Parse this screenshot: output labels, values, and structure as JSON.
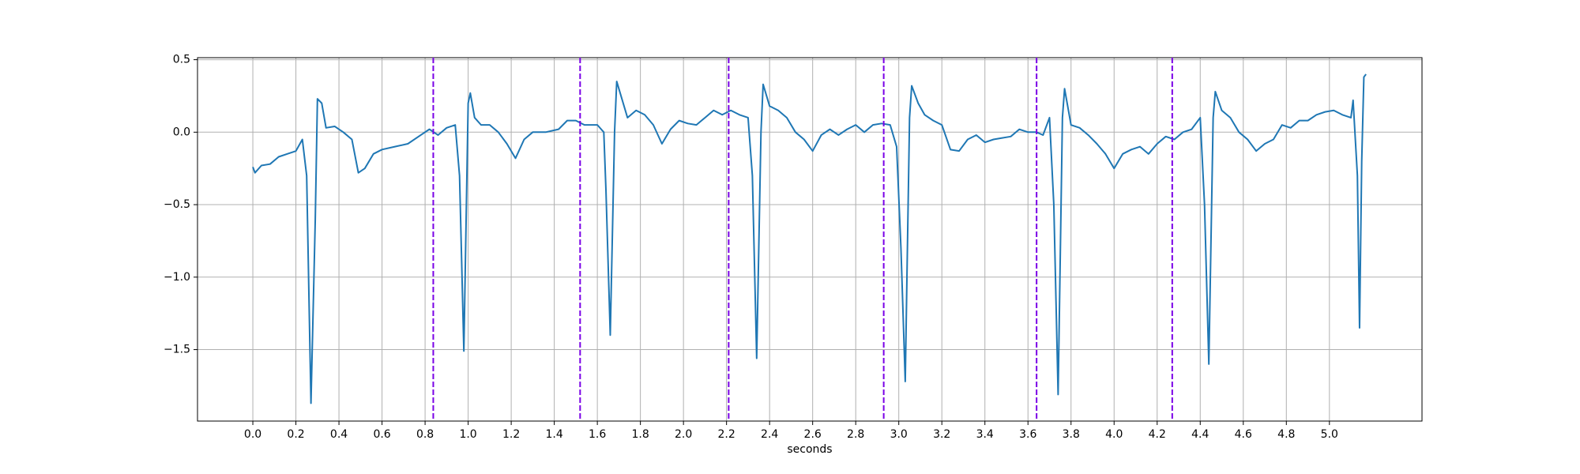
{
  "chart_data": {
    "type": "line",
    "xlabel": "seconds",
    "x": [
      0.0,
      0.01,
      0.04,
      0.08,
      0.12,
      0.16,
      0.2,
      0.23,
      0.25,
      0.27,
      0.29,
      0.3,
      0.32,
      0.34,
      0.38,
      0.42,
      0.46,
      0.49,
      0.52,
      0.56,
      0.6,
      0.66,
      0.72,
      0.78,
      0.82,
      0.86,
      0.9,
      0.94,
      0.96,
      0.98,
      1.0,
      1.01,
      1.03,
      1.06,
      1.1,
      1.14,
      1.18,
      1.22,
      1.26,
      1.3,
      1.36,
      1.42,
      1.46,
      1.5,
      1.54,
      1.6,
      1.63,
      1.64,
      1.66,
      1.68,
      1.69,
      1.71,
      1.74,
      1.78,
      1.82,
      1.86,
      1.9,
      1.94,
      1.98,
      2.02,
      2.06,
      2.1,
      2.14,
      2.18,
      2.22,
      2.26,
      2.3,
      2.32,
      2.34,
      2.36,
      2.37,
      2.4,
      2.44,
      2.48,
      2.52,
      2.56,
      2.6,
      2.64,
      2.68,
      2.72,
      2.76,
      2.8,
      2.84,
      2.88,
      2.92,
      2.96,
      2.99,
      3.01,
      3.03,
      3.05,
      3.06,
      3.09,
      3.12,
      3.16,
      3.2,
      3.24,
      3.28,
      3.32,
      3.36,
      3.4,
      3.44,
      3.48,
      3.52,
      3.56,
      3.6,
      3.64,
      3.67,
      3.7,
      3.72,
      3.74,
      3.76,
      3.77,
      3.8,
      3.84,
      3.88,
      3.92,
      3.96,
      4.0,
      4.04,
      4.08,
      4.12,
      4.16,
      4.2,
      4.24,
      4.28,
      4.32,
      4.36,
      4.4,
      4.42,
      4.44,
      4.46,
      4.47,
      4.5,
      4.54,
      4.58,
      4.62,
      4.66,
      4.7,
      4.74,
      4.78,
      4.82,
      4.86,
      4.9,
      4.94,
      4.98,
      5.02,
      5.06,
      5.1,
      5.11,
      5.13,
      5.14,
      5.15,
      5.16,
      5.17
    ],
    "series": [
      {
        "color": "#1f77b4",
        "values": [
          -0.24,
          -0.28,
          -0.23,
          -0.22,
          -0.17,
          -0.15,
          -0.13,
          -0.05,
          -0.3,
          -1.87,
          -0.6,
          0.23,
          0.2,
          0.03,
          0.04,
          0.0,
          -0.05,
          -0.28,
          -0.25,
          -0.15,
          -0.12,
          -0.1,
          -0.08,
          -0.02,
          0.02,
          -0.02,
          0.03,
          0.05,
          -0.3,
          -1.51,
          0.2,
          0.27,
          0.1,
          0.05,
          0.05,
          0.0,
          -0.08,
          -0.18,
          -0.05,
          0.0,
          0.0,
          0.02,
          0.08,
          0.08,
          0.05,
          0.05,
          0.0,
          -0.4,
          -1.4,
          0.0,
          0.35,
          0.25,
          0.1,
          0.15,
          0.12,
          0.05,
          -0.08,
          0.02,
          0.08,
          0.06,
          0.05,
          0.1,
          0.15,
          0.12,
          0.15,
          0.12,
          0.1,
          -0.3,
          -1.56,
          0.0,
          0.33,
          0.18,
          0.15,
          0.1,
          0.0,
          -0.05,
          -0.13,
          -0.02,
          0.02,
          -0.02,
          0.02,
          0.05,
          0.0,
          0.05,
          0.06,
          0.05,
          -0.1,
          -0.8,
          -1.72,
          0.1,
          0.32,
          0.2,
          0.12,
          0.08,
          0.05,
          -0.12,
          -0.13,
          -0.05,
          -0.02,
          -0.07,
          -0.05,
          -0.04,
          -0.03,
          0.02,
          0.0,
          0.0,
          -0.02,
          0.1,
          -0.5,
          -1.81,
          0.1,
          0.3,
          0.05,
          0.03,
          -0.02,
          -0.08,
          -0.15,
          -0.25,
          -0.15,
          -0.12,
          -0.1,
          -0.15,
          -0.08,
          -0.03,
          -0.05,
          0.0,
          0.02,
          0.1,
          -0.5,
          -1.6,
          0.1,
          0.28,
          0.15,
          0.1,
          0.0,
          -0.05,
          -0.13,
          -0.08,
          -0.05,
          0.05,
          0.03,
          0.08,
          0.08,
          0.12,
          0.14,
          0.15,
          0.12,
          0.1,
          0.22,
          -0.3,
          -1.35,
          -0.2,
          0.38,
          0.4
        ]
      }
    ],
    "vlines": {
      "color": "#7a00e6",
      "x": [
        0.838,
        1.52,
        2.21,
        2.93,
        3.64,
        4.27
      ]
    },
    "xlim": [
      -0.257,
      5.43
    ],
    "ylim": [
      -1.993,
      0.514
    ],
    "xticks": [
      {
        "value": 0,
        "label": "0.0"
      },
      {
        "value": 0.2,
        "label": "0.2"
      },
      {
        "value": 0.4,
        "label": "0.4"
      },
      {
        "value": 0.6,
        "label": "0.6"
      },
      {
        "value": 0.8,
        "label": "0.8"
      },
      {
        "value": 1,
        "label": "1.0"
      },
      {
        "value": 1.2,
        "label": "1.2"
      },
      {
        "value": 1.4,
        "label": "1.4"
      },
      {
        "value": 1.6,
        "label": "1.6"
      },
      {
        "value": 1.8,
        "label": "1.8"
      },
      {
        "value": 2,
        "label": "2.0"
      },
      {
        "value": 2.2,
        "label": "2.2"
      },
      {
        "value": 2.4,
        "label": "2.4"
      },
      {
        "value": 2.6,
        "label": "2.6"
      },
      {
        "value": 2.8,
        "label": "2.8"
      },
      {
        "value": 3,
        "label": "3.0"
      },
      {
        "value": 3.2,
        "label": "3.2"
      },
      {
        "value": 3.4,
        "label": "3.4"
      },
      {
        "value": 3.6,
        "label": "3.6"
      },
      {
        "value": 3.8,
        "label": "3.8"
      },
      {
        "value": 4,
        "label": "4.0"
      },
      {
        "value": 4.2,
        "label": "4.2"
      },
      {
        "value": 4.4,
        "label": "4.4"
      },
      {
        "value": 4.6,
        "label": "4.6"
      },
      {
        "value": 4.8,
        "label": "4.8"
      },
      {
        "value": 5,
        "label": "5.0"
      }
    ],
    "yticks": [
      0.5,
      {
        "value": 0,
        "label": "0.0"
      },
      {
        "value": -0.5,
        "label": "−0.5"
      },
      {
        "value": -1,
        "label": "−1.0"
      },
      {
        "value": -1.5,
        "label": "−1.5"
      }
    ],
    "grid": true
  }
}
